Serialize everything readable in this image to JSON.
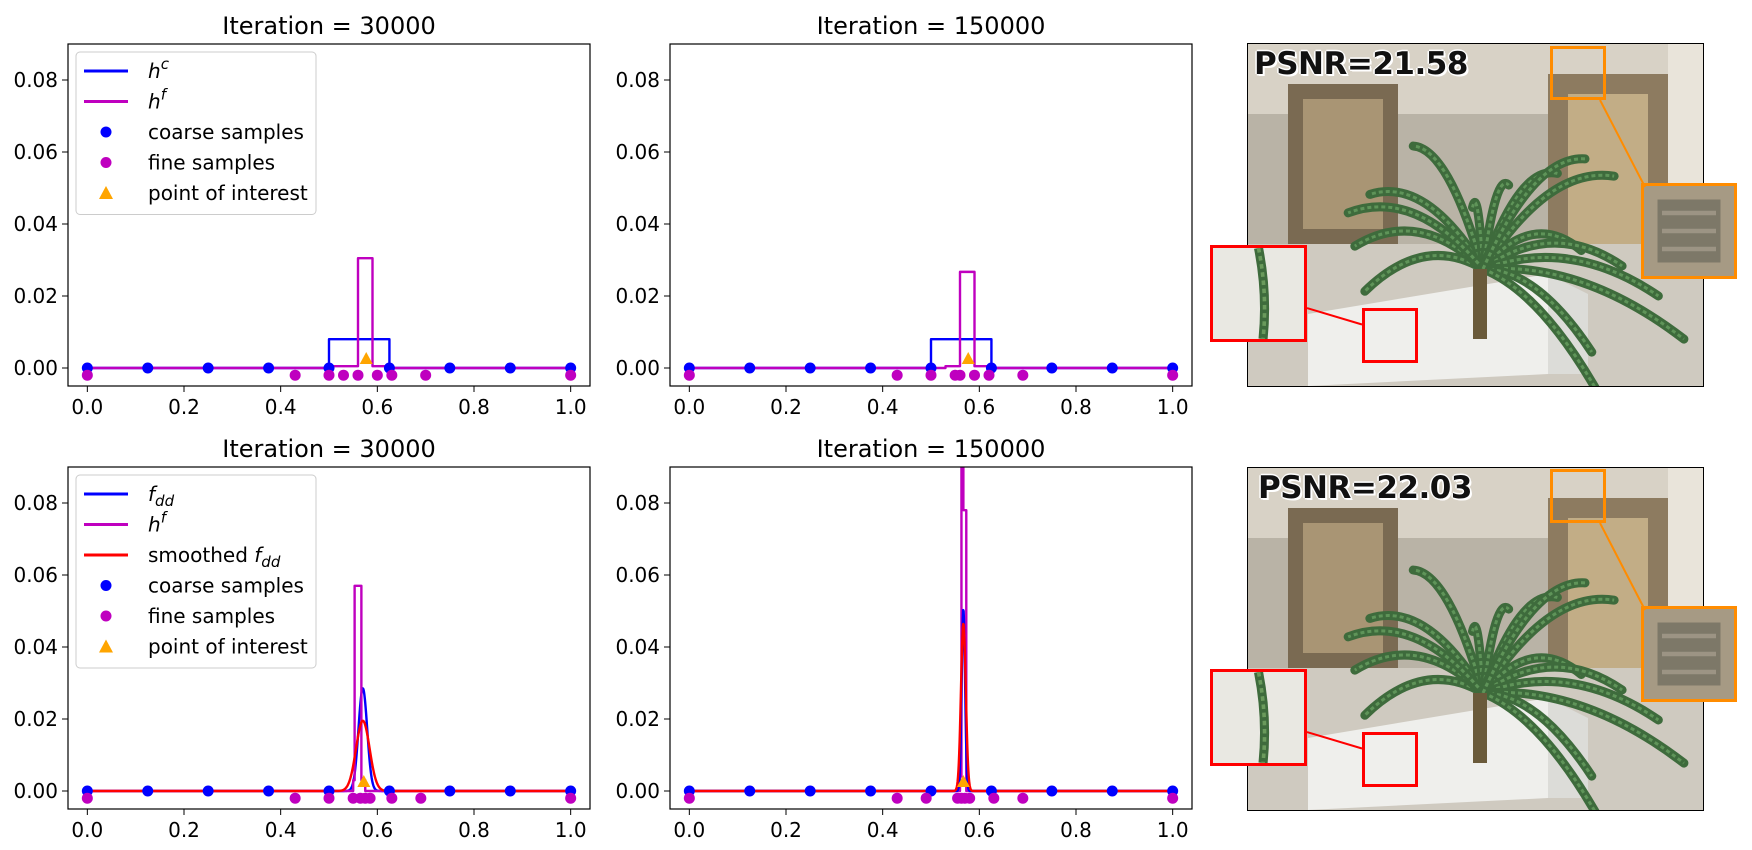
{
  "chart_data": [
    {
      "type": "line",
      "title": "Iteration = 30000",
      "xlim": [
        -0.04,
        1.04
      ],
      "ylim": [
        -0.005,
        0.09
      ],
      "xticks": [
        "0.0",
        "0.2",
        "0.4",
        "0.6",
        "0.8",
        "1.0"
      ],
      "yticks": [
        "0.00",
        "0.02",
        "0.04",
        "0.06",
        "0.08"
      ],
      "legend_position": "top-left",
      "legend": [
        "h^c",
        "h^f",
        "coarse samples",
        "fine samples",
        "point of interest"
      ],
      "series": [
        {
          "name": "h^c",
          "kind": "step",
          "color": "#0000ff",
          "x": [
            0.0,
            0.5,
            0.5,
            0.625,
            0.625,
            1.0
          ],
          "y": [
            0,
            0,
            0.008,
            0.008,
            0,
            0
          ]
        },
        {
          "name": "h^f",
          "kind": "step",
          "color": "#bf00bf",
          "x": [
            0.0,
            0.5,
            0.5,
            0.56,
            0.56,
            0.59,
            0.59,
            0.625,
            0.625,
            1.0
          ],
          "y": [
            0,
            0,
            0.0005,
            0.0005,
            0.0305,
            0.0305,
            0.0005,
            0.0005,
            0,
            0
          ]
        }
      ],
      "coarse_samples": {
        "name": "coarse samples",
        "x": [
          0.0,
          0.125,
          0.25,
          0.375,
          0.5,
          0.625,
          0.75,
          0.875,
          1.0
        ],
        "y": 0
      },
      "fine_samples": {
        "name": "fine samples",
        "x": [
          0.0,
          0.43,
          0.5,
          0.53,
          0.56,
          0.6,
          0.63,
          0.7,
          1.0
        ],
        "y": -0.002
      },
      "point_of_interest": {
        "name": "point of interest",
        "x": 0.577,
        "y": 0.0025
      }
    },
    {
      "type": "line",
      "title": "Iteration = 150000",
      "xlim": [
        -0.04,
        1.04
      ],
      "ylim": [
        -0.005,
        0.09
      ],
      "xticks": [
        "0.0",
        "0.2",
        "0.4",
        "0.6",
        "0.8",
        "1.0"
      ],
      "yticks": [
        "0.00",
        "0.02",
        "0.04",
        "0.06",
        "0.08"
      ],
      "legend": [],
      "series": [
        {
          "name": "h^c",
          "kind": "step",
          "color": "#0000ff",
          "x": [
            0.0,
            0.5,
            0.5,
            0.625,
            0.625,
            1.0
          ],
          "y": [
            0,
            0,
            0.008,
            0.008,
            0,
            0
          ]
        },
        {
          "name": "h^f",
          "kind": "step",
          "color": "#bf00bf",
          "x": [
            0.0,
            0.53,
            0.53,
            0.56,
            0.56,
            0.59,
            0.59,
            0.625,
            0.625,
            1.0
          ],
          "y": [
            0,
            0,
            0.0005,
            0.0005,
            0.0267,
            0.0267,
            0.0005,
            0.0005,
            0,
            0
          ]
        }
      ],
      "coarse_samples": {
        "name": "coarse samples",
        "x": [
          0.0,
          0.125,
          0.25,
          0.375,
          0.5,
          0.625,
          0.75,
          0.875,
          1.0
        ],
        "y": 0
      },
      "fine_samples": {
        "name": "fine samples",
        "x": [
          0.0,
          0.43,
          0.5,
          0.55,
          0.56,
          0.59,
          0.62,
          0.69,
          1.0
        ],
        "y": -0.002
      },
      "point_of_interest": {
        "name": "point of interest",
        "x": 0.577,
        "y": 0.0025
      }
    },
    {
      "type": "line",
      "title": "Iteration = 30000",
      "xlim": [
        -0.04,
        1.04
      ],
      "ylim": [
        -0.005,
        0.09
      ],
      "xticks": [
        "0.0",
        "0.2",
        "0.4",
        "0.6",
        "0.8",
        "1.0"
      ],
      "yticks": [
        "0.00",
        "0.02",
        "0.04",
        "0.06",
        "0.08"
      ],
      "legend_position": "top-left",
      "legend": [
        "f_dd",
        "h^f",
        "smoothed f_dd",
        "coarse samples",
        "fine samples",
        "point of interest"
      ],
      "series": [
        {
          "name": "f_dd",
          "kind": "gaussian",
          "color": "#0000ff",
          "center": 0.57,
          "peak": 0.0285,
          "sigma": 0.009
        },
        {
          "name": "h^f",
          "kind": "step",
          "color": "#bf00bf",
          "x": [
            0.0,
            0.55,
            0.55,
            0.553,
            0.553,
            0.567,
            0.567,
            0.575,
            0.575,
            1.0
          ],
          "y": [
            0,
            0,
            0.003,
            0.003,
            0.057,
            0.057,
            0.003,
            0.003,
            0,
            0
          ]
        },
        {
          "name": "smoothed f_dd",
          "kind": "gaussian",
          "color": "#ff0000",
          "center": 0.57,
          "peak": 0.0195,
          "sigma": 0.014
        }
      ],
      "coarse_samples": {
        "name": "coarse samples",
        "x": [
          0.0,
          0.125,
          0.25,
          0.375,
          0.5,
          0.625,
          0.75,
          0.875,
          1.0
        ],
        "y": 0
      },
      "fine_samples": {
        "name": "fine samples",
        "x": [
          0.0,
          0.43,
          0.5,
          0.55,
          0.565,
          0.575,
          0.585,
          0.63,
          0.69,
          1.0
        ],
        "y": -0.002
      },
      "point_of_interest": {
        "name": "point of interest",
        "x": 0.572,
        "y": 0.0025
      }
    },
    {
      "type": "line",
      "title": "Iteration = 150000",
      "xlim": [
        -0.04,
        1.04
      ],
      "ylim": [
        -0.005,
        0.09
      ],
      "xticks": [
        "0.0",
        "0.2",
        "0.4",
        "0.6",
        "0.8",
        "1.0"
      ],
      "yticks": [
        "0.00",
        "0.02",
        "0.04",
        "0.06",
        "0.08"
      ],
      "legend": [],
      "series": [
        {
          "name": "h^f",
          "kind": "step",
          "color": "#bf00bf",
          "x": [
            0.0,
            0.56,
            0.56,
            0.563,
            0.563,
            0.567,
            0.567,
            0.573,
            0.573,
            1.0
          ],
          "y": [
            0,
            0,
            0.004,
            0.004,
            0.092,
            0.092,
            0.078,
            0.078,
            0,
            0
          ]
        },
        {
          "name": "f_dd",
          "kind": "gaussian",
          "color": "#0000ff",
          "center": 0.567,
          "peak": 0.0505,
          "sigma": 0.0035
        },
        {
          "name": "smoothed f_dd",
          "kind": "gaussian",
          "color": "#ff0000",
          "center": 0.567,
          "peak": 0.0465,
          "sigma": 0.005
        }
      ],
      "coarse_samples": {
        "name": "coarse samples",
        "x": [
          0.0,
          0.125,
          0.25,
          0.375,
          0.5,
          0.625,
          0.75,
          0.875,
          1.0
        ],
        "y": 0
      },
      "fine_samples": {
        "name": "fine samples",
        "x": [
          0.0,
          0.43,
          0.49,
          0.555,
          0.563,
          0.57,
          0.58,
          0.63,
          0.69,
          1.0
        ],
        "y": -0.002
      },
      "point_of_interest": {
        "name": "point of interest",
        "x": 0.567,
        "y": 0.0025
      }
    }
  ],
  "images": [
    {
      "psnr": "PSNR=21.58"
    },
    {
      "psnr": "PSNR=22.03"
    }
  ],
  "colors": {
    "coarse": "#0000ff",
    "fine": "#bf00bf",
    "smoothed": "#ff0000",
    "poi": "#ffa500",
    "zoom_red": "#ff0000",
    "zoom_orange": "#ff8c00"
  }
}
